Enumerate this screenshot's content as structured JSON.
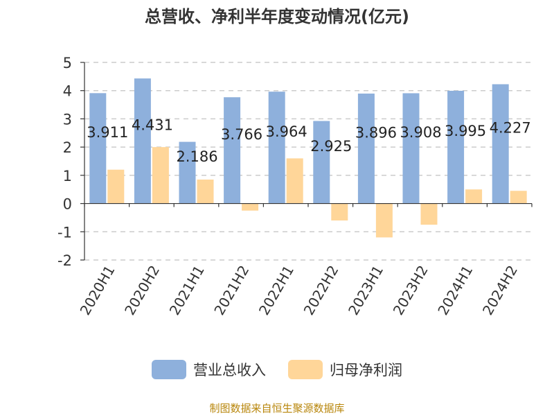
{
  "chart_data": {
    "type": "bar",
    "title": "总营收、净利半年度变动情况(亿元)",
    "categories": [
      "2020H1",
      "2020H2",
      "2021H1",
      "2021H2",
      "2022H1",
      "2022H2",
      "2023H1",
      "2023H2",
      "2024H1",
      "2024H2"
    ],
    "series": [
      {
        "name": "营业总收入",
        "color": "#8eb0dc",
        "values": [
          3.911,
          4.431,
          2.186,
          3.766,
          3.964,
          2.925,
          3.896,
          3.908,
          3.995,
          4.227
        ],
        "labels": [
          "3.911",
          "4.431",
          "2.186",
          "3.766",
          "3.964",
          "2.925",
          "3.896",
          "3.908",
          "3.995",
          "4.227"
        ]
      },
      {
        "name": "归母净利润",
        "color": "#ffd699",
        "values": [
          1.2,
          2.0,
          0.85,
          -0.25,
          1.6,
          -0.6,
          -1.2,
          -0.75,
          0.5,
          0.45
        ]
      }
    ],
    "ylim": [
      -2,
      5
    ],
    "yticks": [
      "-2",
      "-1",
      "0",
      "1",
      "2",
      "3",
      "4",
      "5"
    ],
    "grid": true,
    "legend": "bottom",
    "source": "制图数据来自恒生聚源数据库"
  }
}
